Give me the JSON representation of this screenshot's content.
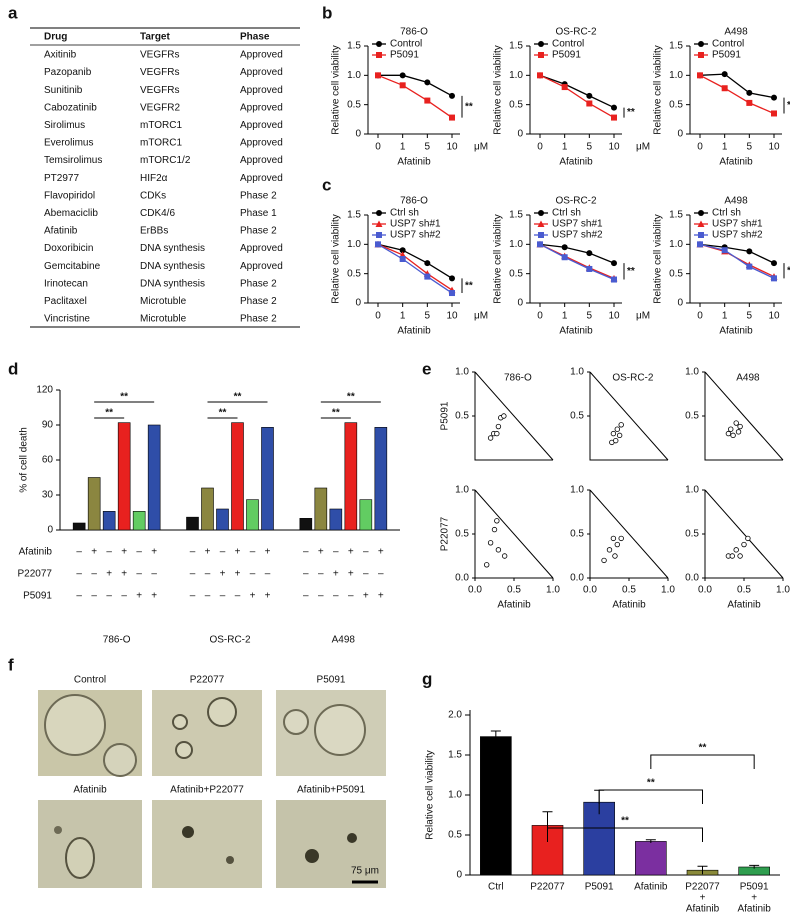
{
  "panel_labels": [
    "a",
    "b",
    "c",
    "d",
    "e",
    "f",
    "g"
  ],
  "table": {
    "header": [
      "Drug",
      "Target",
      "Phase"
    ],
    "rows": [
      [
        "Axitinib",
        "VEGFRs",
        "Approved"
      ],
      [
        "Pazopanib",
        "VEGFRs",
        "Approved"
      ],
      [
        "Sunitinib",
        "VEGFRs",
        "Approved"
      ],
      [
        "Cabozatinib",
        "VEGFR2",
        "Approved"
      ],
      [
        "Sirolimus",
        "mTORC1",
        "Approved"
      ],
      [
        "Everolimus",
        "mTORC1",
        "Approved"
      ],
      [
        "Temsirolimus",
        "mTORC1/2",
        "Approved"
      ],
      [
        "PT2977",
        "HIF2α",
        "Approved"
      ],
      [
        "Flavopiridol",
        "CDKs",
        "Phase 2"
      ],
      [
        "Abemaciclib",
        "CDK4/6",
        "Phase 1"
      ],
      [
        "Afatinib",
        "ErBBs",
        "Phase 2"
      ],
      [
        "Doxoribicin",
        "DNA synthesis",
        "Approved"
      ],
      [
        "Gemcitabine",
        "DNA synthesis",
        "Approved"
      ],
      [
        "Irinotecan",
        "DNA synthesis",
        "Phase 2"
      ],
      [
        "Paclitaxel",
        "Microtuble",
        "Phase 2"
      ],
      [
        "Vincristine",
        "Microtuble",
        "Phase 2"
      ]
    ]
  },
  "chart_data": [
    {
      "type": "line",
      "title": "786-O",
      "x_label": "Afatinib",
      "x_unit": "μM",
      "y_label": "Relative cell viability",
      "categories": [
        "0",
        "1",
        "5",
        "10"
      ],
      "ylim": [
        0,
        1.5
      ],
      "yticks": [
        0,
        0.5,
        {
          "value": 1,
          "label": "1.0"
        },
        1.5
      ],
      "annotation": "**",
      "series": [
        {
          "name": "Control",
          "color": "#000000",
          "marker": "circle",
          "values": [
            1.0,
            1.0,
            0.88,
            0.65
          ]
        },
        {
          "name": "P5091",
          "color": "#e8211f",
          "marker": "square",
          "values": [
            1.0,
            0.83,
            0.57,
            0.28
          ]
        }
      ]
    },
    {
      "type": "line",
      "title": "OS-RC-2",
      "x_label": "Afatinib",
      "x_unit": "μM",
      "y_label": "Relative cell viability",
      "categories": [
        "0",
        "1",
        "5",
        "10"
      ],
      "ylim": [
        0,
        1.5
      ],
      "yticks": [
        0,
        0.5,
        {
          "value": 1,
          "label": "1.0"
        },
        1.5
      ],
      "annotation": "**",
      "series": [
        {
          "name": "Control",
          "color": "#000000",
          "marker": "circle",
          "values": [
            1.0,
            0.85,
            0.65,
            0.45
          ]
        },
        {
          "name": "P5091",
          "color": "#e8211f",
          "marker": "square",
          "values": [
            1.0,
            0.8,
            0.52,
            0.28
          ]
        }
      ]
    },
    {
      "type": "line",
      "title": "A498",
      "x_label": "Afatinib",
      "x_unit": "μM",
      "y_label": "Relative cell viability",
      "categories": [
        "0",
        "1",
        "5",
        "10"
      ],
      "ylim": [
        0,
        1.5
      ],
      "yticks": [
        0,
        0.5,
        {
          "value": 1,
          "label": "1.0"
        },
        1.5
      ],
      "annotation": "**",
      "series": [
        {
          "name": "Control",
          "color": "#000000",
          "marker": "circle",
          "values": [
            1.0,
            1.02,
            0.7,
            0.62
          ]
        },
        {
          "name": "P5091",
          "color": "#e8211f",
          "marker": "square",
          "values": [
            1.0,
            0.78,
            0.53,
            0.35
          ]
        }
      ]
    },
    {
      "type": "line",
      "title": "786-O",
      "x_label": "Afatinib",
      "x_unit": "μM",
      "y_label": "Relative cell viability",
      "categories": [
        "0",
        "1",
        "5",
        "10"
      ],
      "ylim": [
        0,
        1.5
      ],
      "yticks": [
        0,
        0.5,
        {
          "value": 1,
          "label": "1.0"
        },
        1.5
      ],
      "annotation": "**",
      "series": [
        {
          "name": "Ctrl sh",
          "color": "#000000",
          "marker": "circle",
          "values": [
            1.0,
            0.9,
            0.68,
            0.42
          ]
        },
        {
          "name": "USP7 sh#1",
          "color": "#e8211f",
          "marker": "triangle",
          "values": [
            1.0,
            0.82,
            0.5,
            0.22
          ]
        },
        {
          "name": "USP7 sh#2",
          "color": "#4a5bd0",
          "marker": "square",
          "values": [
            1.0,
            0.75,
            0.45,
            0.17
          ]
        }
      ]
    },
    {
      "type": "line",
      "title": "OS-RC-2",
      "x_label": "Afatinib",
      "x_unit": "μM",
      "y_label": "Relative cell viability",
      "categories": [
        "0",
        "1",
        "5",
        "10"
      ],
      "ylim": [
        0,
        1.5
      ],
      "yticks": [
        0,
        0.5,
        {
          "value": 1,
          "label": "1.0"
        },
        1.5
      ],
      "annotation": "**",
      "series": [
        {
          "name": "Ctrl sh",
          "color": "#000000",
          "marker": "circle",
          "values": [
            1.0,
            0.95,
            0.85,
            0.68
          ]
        },
        {
          "name": "USP7 sh#1",
          "color": "#e8211f",
          "marker": "triangle",
          "values": [
            1.0,
            0.8,
            0.6,
            0.42
          ]
        },
        {
          "name": "USP7 sh#2",
          "color": "#4a5bd0",
          "marker": "square",
          "values": [
            1.0,
            0.78,
            0.58,
            0.4
          ]
        }
      ]
    },
    {
      "type": "line",
      "title": "A498",
      "x_label": "Afatinib",
      "x_unit": "μM",
      "y_label": "Relative cell viability",
      "categories": [
        "0",
        "1",
        "5",
        "10"
      ],
      "ylim": [
        0,
        1.5
      ],
      "yticks": [
        0,
        0.5,
        {
          "value": 1,
          "label": "1.0"
        },
        1.5
      ],
      "annotation": "**",
      "series": [
        {
          "name": "Ctrl sh",
          "color": "#000000",
          "marker": "circle",
          "values": [
            1.0,
            0.95,
            0.88,
            0.68
          ]
        },
        {
          "name": "USP7 sh#1",
          "color": "#e8211f",
          "marker": "triangle",
          "values": [
            1.0,
            0.88,
            0.65,
            0.45
          ]
        },
        {
          "name": "USP7 sh#2",
          "color": "#4a5bd0",
          "marker": "square",
          "values": [
            1.0,
            0.9,
            0.62,
            0.42
          ]
        }
      ]
    },
    {
      "type": "grouped_bar",
      "y_label": "% of cell death",
      "categories": [
        "786-O",
        "OS-RC-2",
        "A498"
      ],
      "ylim": [
        0,
        120
      ],
      "yticks": [
        0,
        30,
        60,
        90,
        120
      ],
      "series": [
        {
          "color": "#111111",
          "values": [
            6,
            11,
            10
          ]
        },
        {
          "color": "#8b8640",
          "values": [
            45,
            36,
            36
          ]
        },
        {
          "color": "#2f4ea8",
          "values": [
            16,
            18,
            18
          ]
        },
        {
          "color": "#e8211f",
          "values": [
            92,
            92,
            92
          ]
        },
        {
          "color": "#62cc62",
          "values": [
            16,
            26,
            26
          ]
        },
        {
          "color": "#2f4ea8",
          "values": [
            90,
            88,
            88
          ]
        }
      ],
      "conditions": [
        {
          "name": "Afatinib",
          "signs": [
            "–",
            "+",
            "–",
            "+",
            "–",
            "+"
          ]
        },
        {
          "name": "P22077",
          "signs": [
            "–",
            "–",
            "+",
            "+",
            "–",
            "–"
          ]
        },
        {
          "name": "P5091",
          "signs": [
            "–",
            "–",
            "–",
            "–",
            "+",
            "+"
          ]
        }
      ],
      "significance": [
        "**",
        "**",
        "**",
        "**",
        "**",
        "**"
      ]
    },
    {
      "type": "scatter",
      "title": "786-O",
      "y_label": "P5091",
      "x": [
        0.2,
        0.24,
        0.28,
        0.3,
        0.33,
        0.37
      ],
      "y": [
        0.25,
        0.3,
        0.3,
        0.38,
        0.48,
        0.5
      ],
      "xlim": [
        0,
        1
      ],
      "ylim": [
        0,
        1
      ],
      "yticks": [
        0.5,
        {
          "value": 1,
          "label": "1.0"
        }
      ]
    },
    {
      "type": "scatter",
      "title": "OS-RC-2",
      "x": [
        0.28,
        0.3,
        0.33,
        0.35,
        0.38,
        0.4
      ],
      "y": [
        0.2,
        0.3,
        0.22,
        0.35,
        0.28,
        0.4
      ],
      "xlim": [
        0,
        1
      ],
      "ylim": [
        0,
        1
      ],
      "yticks": [
        0.5,
        {
          "value": 1,
          "label": "1.0"
        }
      ]
    },
    {
      "type": "scatter",
      "title": "A498",
      "x": [
        0.3,
        0.33,
        0.36,
        0.4,
        0.43,
        0.45
      ],
      "y": [
        0.3,
        0.35,
        0.28,
        0.42,
        0.32,
        0.38
      ],
      "xlim": [
        0,
        1
      ],
      "ylim": [
        0,
        1
      ],
      "yticks": [
        0.5,
        {
          "value": 1,
          "label": "1.0"
        }
      ]
    },
    {
      "type": "scatter",
      "y_label": "P22077",
      "x_label": "Afatinib",
      "x": [
        0.15,
        0.2,
        0.25,
        0.28,
        0.3,
        0.38
      ],
      "y": [
        0.15,
        0.4,
        0.55,
        0.65,
        0.32,
        0.25
      ],
      "xlim": [
        0,
        1
      ],
      "ylim": [
        0,
        1
      ],
      "xticks": [
        {
          "value": 0,
          "label": "0.0"
        },
        0.5,
        {
          "value": 1,
          "label": "1.0"
        }
      ],
      "yticks": [
        {
          "value": 0,
          "label": "0.0"
        },
        0.5,
        {
          "value": 1,
          "label": "1.0"
        }
      ]
    },
    {
      "type": "scatter",
      "x_label": "Afatinib",
      "x": [
        0.18,
        0.25,
        0.3,
        0.32,
        0.35,
        0.4
      ],
      "y": [
        0.2,
        0.32,
        0.45,
        0.25,
        0.38,
        0.45
      ],
      "xlim": [
        0,
        1
      ],
      "ylim": [
        0,
        1
      ],
      "xticks": [
        {
          "value": 0,
          "label": "0.0"
        },
        0.5,
        {
          "value": 1,
          "label": "1.0"
        }
      ],
      "yticks": [
        {
          "value": 0,
          "label": "0.0"
        },
        0.5,
        {
          "value": 1,
          "label": "1.0"
        }
      ]
    },
    {
      "type": "scatter",
      "x_label": "Afatinib",
      "x": [
        0.3,
        0.35,
        0.4,
        0.45,
        0.5,
        0.55
      ],
      "y": [
        0.25,
        0.25,
        0.32,
        0.25,
        0.38,
        0.45
      ],
      "xlim": [
        0,
        1
      ],
      "ylim": [
        0,
        1
      ],
      "xticks": [
        {
          "value": 0,
          "label": "0.0"
        },
        0.5,
        {
          "value": 1,
          "label": "1.0"
        }
      ],
      "yticks": [
        {
          "value": 0,
          "label": "0.0"
        },
        0.5,
        {
          "value": 1,
          "label": "1.0"
        }
      ]
    },
    {
      "type": "bar",
      "y_label": "Relative cell viability",
      "categories": [
        "Ctrl",
        "P22077",
        "P5091",
        "Afatinib",
        [
          "P22077",
          "+",
          "Afatinib"
        ],
        [
          "P5091",
          "+",
          "Afatinib"
        ]
      ],
      "values": [
        1.73,
        0.62,
        0.91,
        0.42,
        0.06,
        0.1
      ],
      "errors": [
        0.07,
        0.17,
        0.15,
        0.02,
        0.05,
        0.02
      ],
      "colors": [
        "#000000",
        "#e8211f",
        "#2b3fa0",
        "#7b2fa0",
        "#8a8a3a",
        "#2f9e4f"
      ],
      "ylim": [
        0,
        2
      ],
      "yticks": [
        0,
        0.5,
        {
          "value": 1,
          "label": "1.0"
        },
        1.5,
        {
          "value": 2,
          "label": "2.0"
        }
      ],
      "significance": [
        "**",
        "**",
        "**"
      ]
    }
  ],
  "images": {
    "labels": [
      "Control",
      "P22077",
      "P5091",
      "Afatinib",
      "Afatinib+P22077",
      "Afatinib+P5091"
    ],
    "scale_bar": "75 μm"
  }
}
